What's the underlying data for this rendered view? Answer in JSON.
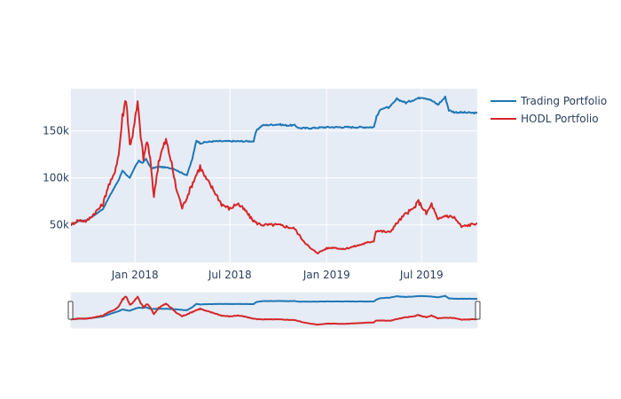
{
  "chart_data": {
    "type": "line",
    "x_axis": {
      "type": "date",
      "range": [
        "2017-09-01",
        "2019-10-15"
      ],
      "tick_values": [
        "2018-01-01",
        "2018-07-01",
        "2019-01-01",
        "2019-07-01"
      ],
      "tick_labels": [
        "Jan 2018",
        "Jul 2018",
        "Jan 2019",
        "Jul 2019"
      ]
    },
    "y_axis": {
      "range": [
        10000,
        195000
      ],
      "tick_values": [
        50000,
        100000,
        150000
      ],
      "tick_labels": [
        "50k",
        "100k",
        "150k"
      ]
    },
    "grid": true,
    "legend_position": "right",
    "rangeslider": true,
    "plot_background": "#e5ecf6",
    "series": [
      {
        "name": "Trading Portfolio",
        "color": "#1f77b4",
        "points": [
          [
            "2017-09-01",
            50000
          ],
          [
            "2017-09-15",
            54000
          ],
          [
            "2017-10-01",
            55000
          ],
          [
            "2017-10-15",
            60000
          ],
          [
            "2017-11-01",
            67000
          ],
          [
            "2017-11-15",
            82000
          ],
          [
            "2017-12-01",
            98000
          ],
          [
            "2017-12-08",
            108000
          ],
          [
            "2017-12-15",
            103000
          ],
          [
            "2017-12-22",
            100000
          ],
          [
            "2018-01-01",
            112000
          ],
          [
            "2018-01-08",
            118000
          ],
          [
            "2018-01-15",
            116000
          ],
          [
            "2018-01-22",
            120000
          ],
          [
            "2018-02-01",
            110000
          ],
          [
            "2018-02-15",
            112000
          ],
          [
            "2018-03-01",
            111000
          ],
          [
            "2018-03-15",
            110000
          ],
          [
            "2018-04-01",
            105000
          ],
          [
            "2018-04-10",
            103000
          ],
          [
            "2018-04-20",
            120000
          ],
          [
            "2018-04-28",
            140000
          ],
          [
            "2018-05-05",
            137000
          ],
          [
            "2018-05-15",
            138000
          ],
          [
            "2018-06-01",
            139000
          ],
          [
            "2018-07-01",
            139000
          ],
          [
            "2018-08-01",
            139000
          ],
          [
            "2018-08-15",
            139000
          ],
          [
            "2018-08-20",
            150000
          ],
          [
            "2018-08-25",
            153000
          ],
          [
            "2018-09-01",
            156000
          ],
          [
            "2018-10-01",
            157000
          ],
          [
            "2018-10-15",
            156000
          ],
          [
            "2018-11-01",
            156000
          ],
          [
            "2018-11-10",
            153000
          ],
          [
            "2018-12-01",
            153000
          ],
          [
            "2019-01-01",
            154000
          ],
          [
            "2019-02-01",
            154000
          ],
          [
            "2019-03-01",
            154000
          ],
          [
            "2019-04-01",
            154000
          ],
          [
            "2019-04-06",
            165000
          ],
          [
            "2019-04-15",
            174000
          ],
          [
            "2019-05-01",
            175000
          ],
          [
            "2019-05-15",
            184000
          ],
          [
            "2019-06-01",
            180000
          ],
          [
            "2019-06-15",
            183000
          ],
          [
            "2019-07-01",
            186000
          ],
          [
            "2019-07-15",
            184000
          ],
          [
            "2019-08-01",
            178000
          ],
          [
            "2019-08-15",
            186000
          ],
          [
            "2019-08-22",
            172000
          ],
          [
            "2019-09-01",
            170000
          ],
          [
            "2019-10-15",
            169000
          ]
        ]
      },
      {
        "name": "HODL Portfolio",
        "color": "#d62728",
        "points": [
          [
            "2017-09-01",
            50000
          ],
          [
            "2017-09-15",
            55000
          ],
          [
            "2017-10-01",
            54000
          ],
          [
            "2017-10-15",
            62000
          ],
          [
            "2017-11-01",
            72000
          ],
          [
            "2017-11-10",
            90000
          ],
          [
            "2017-11-20",
            100000
          ],
          [
            "2017-12-01",
            125000
          ],
          [
            "2017-12-08",
            165000
          ],
          [
            "2017-12-15",
            186000
          ],
          [
            "2017-12-22",
            135000
          ],
          [
            "2017-12-29",
            150000
          ],
          [
            "2018-01-06",
            180000
          ],
          [
            "2018-01-10",
            155000
          ],
          [
            "2018-01-17",
            120000
          ],
          [
            "2018-01-24",
            140000
          ],
          [
            "2018-02-01",
            110000
          ],
          [
            "2018-02-06",
            80000
          ],
          [
            "2018-02-15",
            118000
          ],
          [
            "2018-02-22",
            130000
          ],
          [
            "2018-03-01",
            140000
          ],
          [
            "2018-03-10",
            120000
          ],
          [
            "2018-03-20",
            90000
          ],
          [
            "2018-04-01",
            68000
          ],
          [
            "2018-04-10",
            80000
          ],
          [
            "2018-04-25",
            100000
          ],
          [
            "2018-05-05",
            112000
          ],
          [
            "2018-05-15",
            100000
          ],
          [
            "2018-06-01",
            86000
          ],
          [
            "2018-06-15",
            72000
          ],
          [
            "2018-07-01",
            67000
          ],
          [
            "2018-07-15",
            73000
          ],
          [
            "2018-08-01",
            64000
          ],
          [
            "2018-08-10",
            57000
          ],
          [
            "2018-08-20",
            52000
          ],
          [
            "2018-09-01",
            50000
          ],
          [
            "2018-10-01",
            50000
          ],
          [
            "2018-11-01",
            46000
          ],
          [
            "2018-11-15",
            35000
          ],
          [
            "2018-12-01",
            25000
          ],
          [
            "2018-12-15",
            20000
          ],
          [
            "2019-01-01",
            25000
          ],
          [
            "2019-01-15",
            26000
          ],
          [
            "2019-02-01",
            24000
          ],
          [
            "2019-03-01",
            28000
          ],
          [
            "2019-04-01",
            33000
          ],
          [
            "2019-04-05",
            44000
          ],
          [
            "2019-05-01",
            42000
          ],
          [
            "2019-05-15",
            52000
          ],
          [
            "2019-06-01",
            62000
          ],
          [
            "2019-06-15",
            67000
          ],
          [
            "2019-06-25",
            75000
          ],
          [
            "2019-07-10",
            62000
          ],
          [
            "2019-07-20",
            72000
          ],
          [
            "2019-08-01",
            55000
          ],
          [
            "2019-08-15",
            60000
          ],
          [
            "2019-09-01",
            58000
          ],
          [
            "2019-09-15",
            48000
          ],
          [
            "2019-10-01",
            50000
          ],
          [
            "2019-10-15",
            52000
          ]
        ]
      }
    ]
  }
}
